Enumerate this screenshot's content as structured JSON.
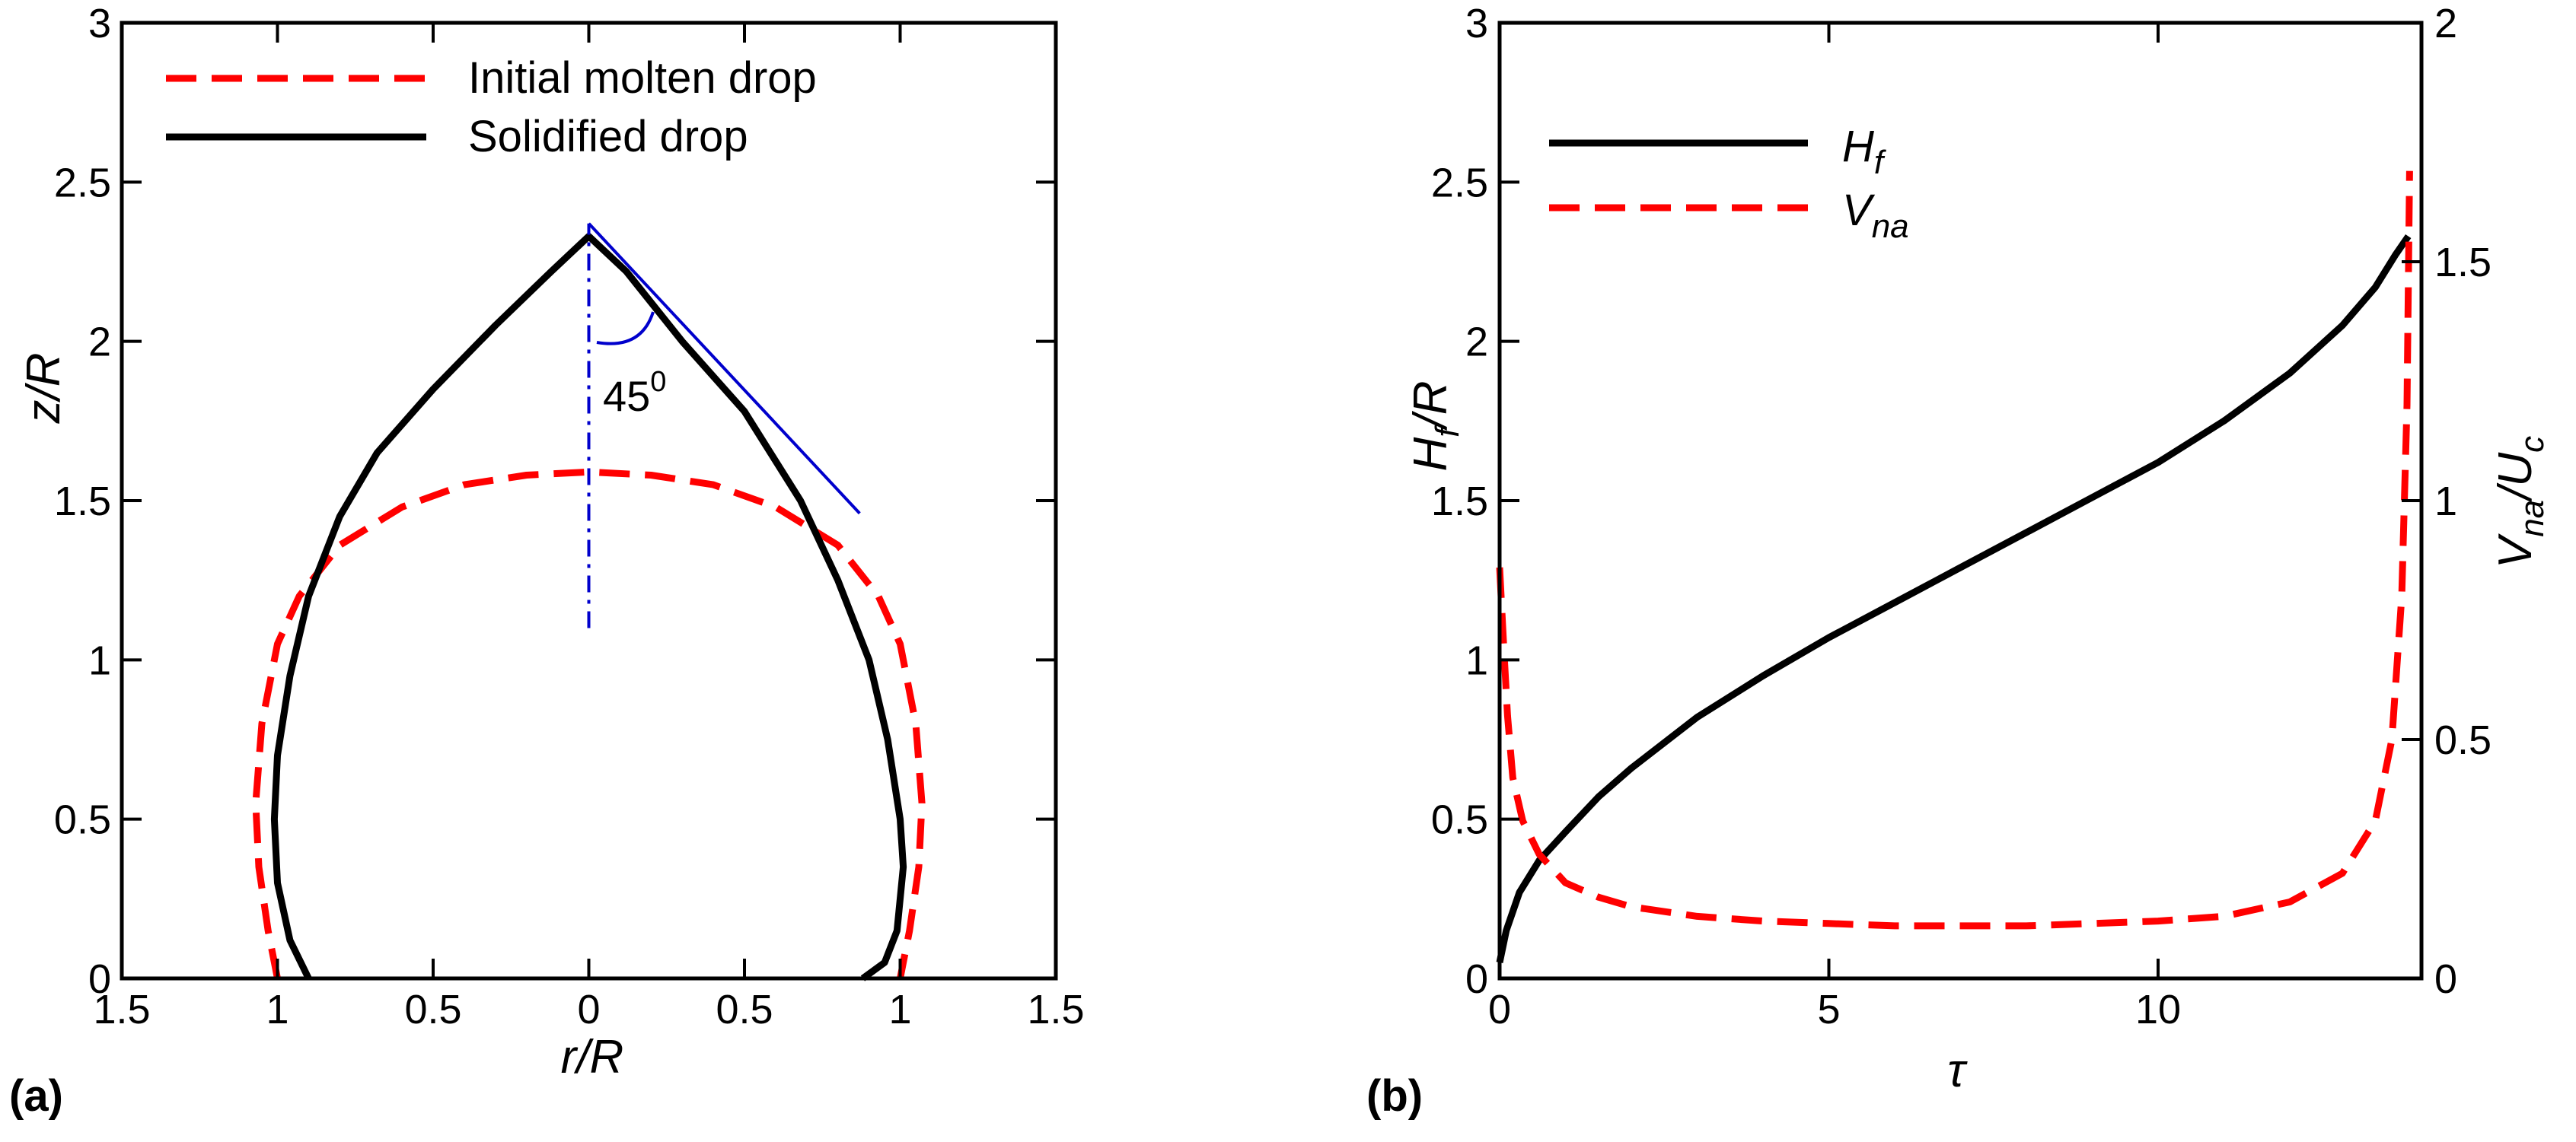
{
  "chart_data": [
    {
      "panel_label": "(a)",
      "type": "line",
      "xlabel": "r/R",
      "ylabel": "z/R",
      "xlim": [
        -1.5,
        1.5
      ],
      "ylim": [
        0,
        3
      ],
      "x_tick_labels": [
        "1.5",
        "1",
        "0.5",
        "0",
        "0.5",
        "1",
        "1.5"
      ],
      "x_tick_values": [
        -1.5,
        -1,
        -0.5,
        0,
        0.5,
        1,
        1.5
      ],
      "y_tick_labels": [
        "0",
        "0.5",
        "1",
        "1.5",
        "2",
        "2.5",
        "3"
      ],
      "y_tick_values": [
        0,
        0.5,
        1,
        1.5,
        2,
        2.5,
        3
      ],
      "grid": false,
      "legend_position": "top-left",
      "series": [
        {
          "name": "Initial molten drop",
          "color": "#ff0000",
          "style": "dashed",
          "x": [
            -1.0,
            -1.03,
            -1.06,
            -1.07,
            -1.05,
            -1.0,
            -0.93,
            -0.8,
            -0.6,
            -0.4,
            -0.2,
            0.0,
            0.2,
            0.4,
            0.6,
            0.8,
            0.93,
            1.0,
            1.05,
            1.07,
            1.06,
            1.03,
            1.0
          ],
          "y": [
            0.0,
            0.15,
            0.35,
            0.55,
            0.8,
            1.05,
            1.2,
            1.36,
            1.48,
            1.55,
            1.58,
            1.59,
            1.58,
            1.55,
            1.48,
            1.36,
            1.2,
            1.05,
            0.8,
            0.55,
            0.35,
            0.15,
            0.0
          ]
        },
        {
          "name": "Solidified drop",
          "color": "#000000",
          "style": "solid",
          "x": [
            -0.9,
            -0.96,
            -1.0,
            -1.01,
            -1.0,
            -0.96,
            -0.9,
            -0.8,
            -0.68,
            -0.5,
            -0.3,
            -0.12,
            0.0,
            0.12,
            0.3,
            0.5,
            0.68,
            0.8,
            0.9,
            0.96,
            1.0,
            1.01,
            0.99,
            0.95,
            0.88
          ],
          "y": [
            0.0,
            0.12,
            0.3,
            0.5,
            0.7,
            0.95,
            1.2,
            1.45,
            1.65,
            1.85,
            2.05,
            2.22,
            2.33,
            2.22,
            2.0,
            1.78,
            1.5,
            1.25,
            1.0,
            0.75,
            0.5,
            0.35,
            0.15,
            0.05,
            0.0
          ]
        }
      ],
      "annotations": {
        "color": "#0000cc",
        "axis_line": {
          "x": [
            0,
            0
          ],
          "y": [
            1.1,
            2.37
          ]
        },
        "tangent_line": {
          "x": [
            0,
            0.87
          ],
          "y": [
            2.37,
            1.46
          ]
        },
        "angle_label_base": "45",
        "angle_label_sup": "0"
      }
    },
    {
      "panel_label": "(b)",
      "type": "line",
      "xlabel": "τ",
      "ylabel_left": {
        "base": "H",
        "sub": "f",
        "rest": "/R"
      },
      "ylabel_right": {
        "base": "V",
        "sub": "na",
        "mid": "/U",
        "sub2": "c"
      },
      "xlim": [
        0,
        14
      ],
      "ylim_left": [
        0,
        3
      ],
      "ylim_right": [
        0,
        2
      ],
      "x_tick_labels": [
        "0",
        "5",
        "10"
      ],
      "x_tick_values": [
        0,
        5,
        10
      ],
      "y_left_tick_labels": [
        "0",
        "0.5",
        "1",
        "1.5",
        "2",
        "2.5",
        "3"
      ],
      "y_left_tick_values": [
        0,
        0.5,
        1,
        1.5,
        2,
        2.5,
        3
      ],
      "y_right_tick_labels": [
        "0",
        "0.5",
        "1",
        "1.5",
        "2"
      ],
      "y_right_tick_values": [
        0,
        0.5,
        1,
        1.5,
        2
      ],
      "grid": false,
      "legend_position": "top-left",
      "series": [
        {
          "name": "H_f",
          "legend_base": "H",
          "legend_sub": "f",
          "axis": "left",
          "color": "#000000",
          "style": "solid",
          "x": [
            0.0,
            0.1,
            0.3,
            0.6,
            1.0,
            1.5,
            2.0,
            3.0,
            4.0,
            5.0,
            6.0,
            7.0,
            8.0,
            9.0,
            10.0,
            11.0,
            12.0,
            12.8,
            13.3,
            13.6,
            13.8
          ],
          "y": [
            0.05,
            0.15,
            0.27,
            0.37,
            0.46,
            0.57,
            0.66,
            0.82,
            0.95,
            1.07,
            1.18,
            1.29,
            1.4,
            1.51,
            1.62,
            1.75,
            1.9,
            2.05,
            2.17,
            2.27,
            2.33
          ]
        },
        {
          "name": "V_na",
          "legend_base": "V",
          "legend_sub": "na",
          "axis": "right",
          "color": "#ff0000",
          "style": "dashed",
          "x": [
            0.0,
            0.06,
            0.12,
            0.2,
            0.35,
            0.6,
            1.0,
            1.5,
            2.0,
            3.0,
            4.0,
            5.0,
            6.0,
            7.0,
            8.0,
            9.0,
            10.0,
            11.0,
            12.0,
            12.8,
            13.3,
            13.55,
            13.7,
            13.78,
            13.82
          ],
          "y": [
            0.86,
            0.7,
            0.55,
            0.42,
            0.33,
            0.26,
            0.2,
            0.17,
            0.15,
            0.13,
            0.12,
            0.115,
            0.11,
            0.11,
            0.11,
            0.115,
            0.12,
            0.13,
            0.16,
            0.22,
            0.33,
            0.5,
            0.8,
            1.2,
            1.69
          ]
        }
      ]
    }
  ]
}
